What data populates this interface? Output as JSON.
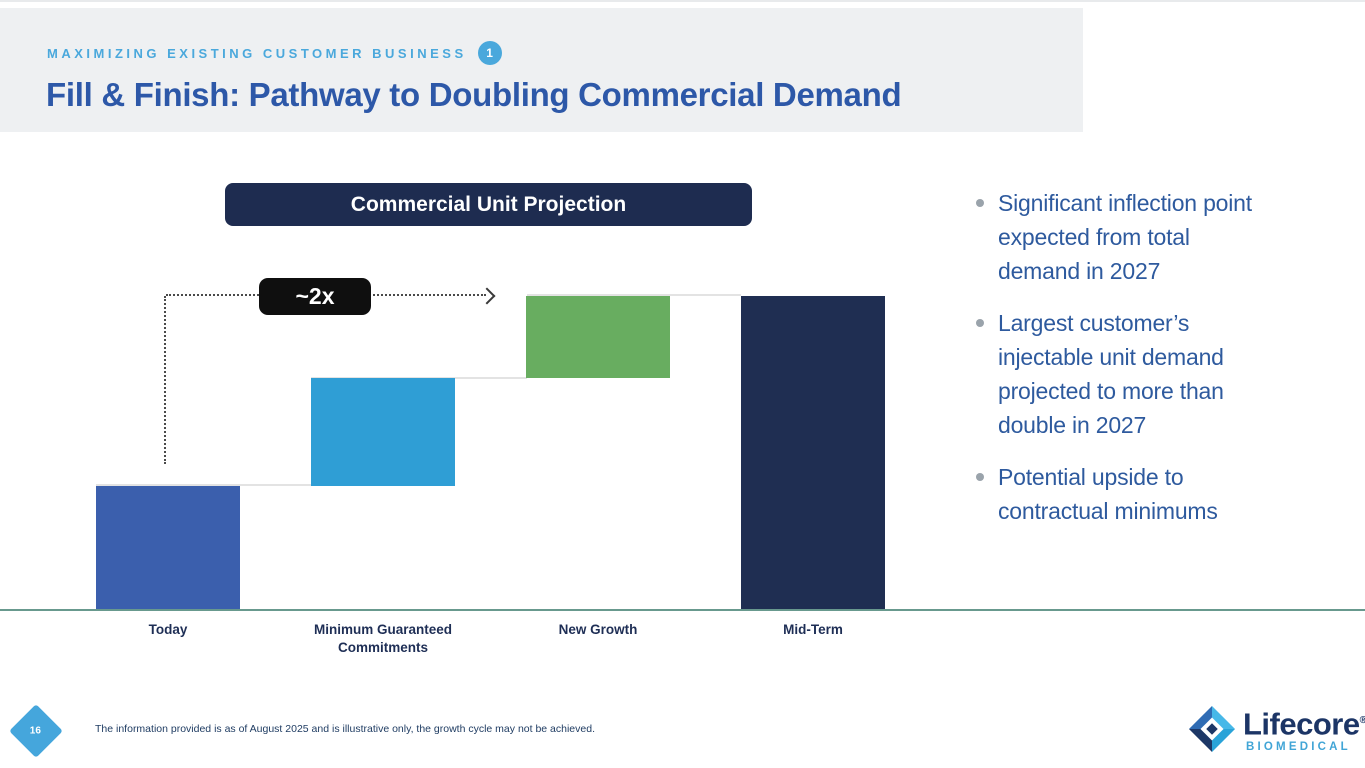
{
  "slide": {
    "eyebrow": "MAXIMIZING EXISTING CUSTOMER BUSINESS",
    "eyebrow_badge": "1",
    "title": "Fill & Finish: Pathway to Doubling Commercial Demand"
  },
  "chart_data": {
    "type": "bar",
    "subtype": "waterfall",
    "title": "Commercial Unit Projection",
    "categories": [
      "Today",
      "Minimum Guaranteed\nCommitments",
      "New Growth",
      "Mid-Term"
    ],
    "segments": [
      {
        "category": "Today",
        "start": 0,
        "end": 1.0,
        "color": "#3b5fad"
      },
      {
        "category": "Minimum Guaranteed Commitments",
        "start": 1.0,
        "end": 1.87,
        "color": "#2f9ed5"
      },
      {
        "category": "New Growth",
        "start": 1.87,
        "end": 2.53,
        "color": "#68ad60"
      },
      {
        "category": "Mid-Term",
        "start": 0,
        "end": 2.53,
        "color": "#1f2e52"
      }
    ],
    "annotation": "~2x",
    "units": "relative units (Today = 1.0); no numeric y-axis shown",
    "y_axis_visible": false,
    "grid": false,
    "legend": false
  },
  "labels": {
    "cat_0": "Today",
    "cat_1a": "Minimum Guaranteed",
    "cat_1b": "Commitments",
    "cat_2": "New Growth",
    "cat_3": "Mid-Term"
  },
  "bullets": [
    "Significant inflection point expected from total demand in 2027",
    "Largest customer’s injectable unit demand projected to more than double in 2027",
    "Potential upside to contractual minimums"
  ],
  "footer": {
    "page_number": "16",
    "disclaimer": "The information provided is as of August 2025 and is illustrative only, the growth cycle may not be achieved."
  },
  "logo": {
    "brand": "Lifecore",
    "registered": "®",
    "sub": "BIOMEDICAL"
  },
  "colors": {
    "header_band": "#eef0f2",
    "eyebrow_accent": "#4aa8dc",
    "title_blue": "#2d58a8",
    "chart_title_bg": "#1e2c50",
    "callout_bg": "#0f0f0f",
    "baseline": "#68998e",
    "bullet_text": "#2e5a9e",
    "bar_today": "#3b5fad",
    "bar_min_guaranteed": "#2f9ed5",
    "bar_new_growth": "#68ad60",
    "bar_mid_term": "#1f2e52"
  }
}
